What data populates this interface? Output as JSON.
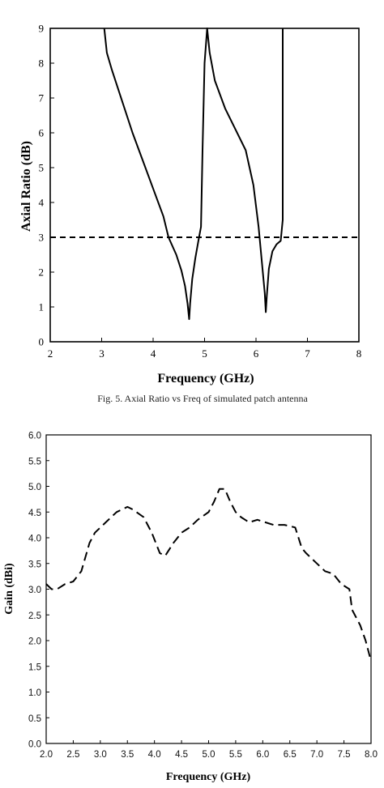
{
  "top_caption": "Fig. 5. Axial Ratio vs Freq of simulated patch antenna",
  "chart_data": [
    {
      "type": "line",
      "title": "",
      "xlabel": "Frequency (GHz)",
      "ylabel": "Axial Ratio (dB)",
      "xlim": [
        2,
        8
      ],
      "ylim": [
        0,
        9
      ],
      "x_ticks": [
        "2",
        "3",
        "4",
        "5",
        "6",
        "7",
        "8"
      ],
      "y_ticks": [
        "0",
        "1",
        "2",
        "3",
        "4",
        "5",
        "6",
        "7",
        "8",
        "9"
      ],
      "grid": false,
      "legend": "none",
      "series": [
        {
          "style": "solid",
          "color": "#000000",
          "x": [
            3.05,
            3.1,
            3.2,
            3.4,
            3.6,
            3.8,
            4.0,
            4.2,
            4.3,
            4.45,
            4.55,
            4.62,
            4.67,
            4.7,
            4.72,
            4.76,
            4.82,
            4.88,
            4.93,
            4.96,
            5.0,
            5.05,
            5.1,
            5.2,
            5.4,
            5.6,
            5.8,
            5.95,
            6.05,
            6.12,
            6.17,
            6.19,
            6.21,
            6.25,
            6.32,
            6.4,
            6.48,
            6.52,
            6.52
          ],
          "y": [
            9.0,
            8.3,
            7.8,
            6.9,
            6.0,
            5.2,
            4.4,
            3.6,
            3.0,
            2.5,
            2.05,
            1.6,
            1.1,
            0.65,
            1.1,
            1.8,
            2.4,
            2.9,
            3.3,
            5.5,
            8.0,
            9.0,
            8.3,
            7.5,
            6.7,
            6.1,
            5.5,
            4.5,
            3.3,
            2.2,
            1.4,
            0.85,
            1.3,
            2.1,
            2.6,
            2.8,
            2.9,
            3.5,
            9.0
          ]
        },
        {
          "style": "dashed",
          "color": "#000000",
          "x": [
            2,
            8
          ],
          "y": [
            3,
            3
          ]
        }
      ]
    },
    {
      "type": "line",
      "title": "",
      "xlabel": "Frequency (GHz)",
      "ylabel": "Gain (dBi)",
      "xlim": [
        2.0,
        8.0
      ],
      "ylim": [
        0.0,
        6.0
      ],
      "x_ticks": [
        "2.0",
        "2.5",
        "3.0",
        "3.5",
        "4.0",
        "4.5",
        "5.0",
        "5.5",
        "6.0",
        "6.5",
        "7.0",
        "7.5",
        "8.0"
      ],
      "y_ticks": [
        "0.0",
        "0.5",
        "1.0",
        "1.5",
        "2.0",
        "2.5",
        "3.0",
        "3.5",
        "4.0",
        "4.5",
        "5.0",
        "5.5",
        "6.0"
      ],
      "grid": false,
      "legend": "none",
      "series": [
        {
          "style": "dashed",
          "color": "#000000",
          "x": [
            2.0,
            2.1,
            2.2,
            2.35,
            2.5,
            2.65,
            2.8,
            2.9,
            3.1,
            3.3,
            3.5,
            3.6,
            3.8,
            3.95,
            4.1,
            4.2,
            4.35,
            4.5,
            4.65,
            4.8,
            5.0,
            5.1,
            5.2,
            5.3,
            5.4,
            5.5,
            5.6,
            5.75,
            5.9,
            6.05,
            6.2,
            6.4,
            6.6,
            6.72,
            6.8,
            7.0,
            7.15,
            7.3,
            7.45,
            7.6,
            7.65,
            7.8,
            7.9,
            8.0
          ],
          "y": [
            3.1,
            3.0,
            3.0,
            3.1,
            3.15,
            3.35,
            3.9,
            4.1,
            4.3,
            4.5,
            4.6,
            4.55,
            4.4,
            4.1,
            3.7,
            3.65,
            3.9,
            4.1,
            4.2,
            4.35,
            4.5,
            4.7,
            4.95,
            4.95,
            4.7,
            4.5,
            4.4,
            4.3,
            4.35,
            4.3,
            4.25,
            4.25,
            4.2,
            3.8,
            3.7,
            3.5,
            3.35,
            3.3,
            3.1,
            3.0,
            2.6,
            2.3,
            2.0,
            1.6
          ]
        }
      ]
    }
  ]
}
